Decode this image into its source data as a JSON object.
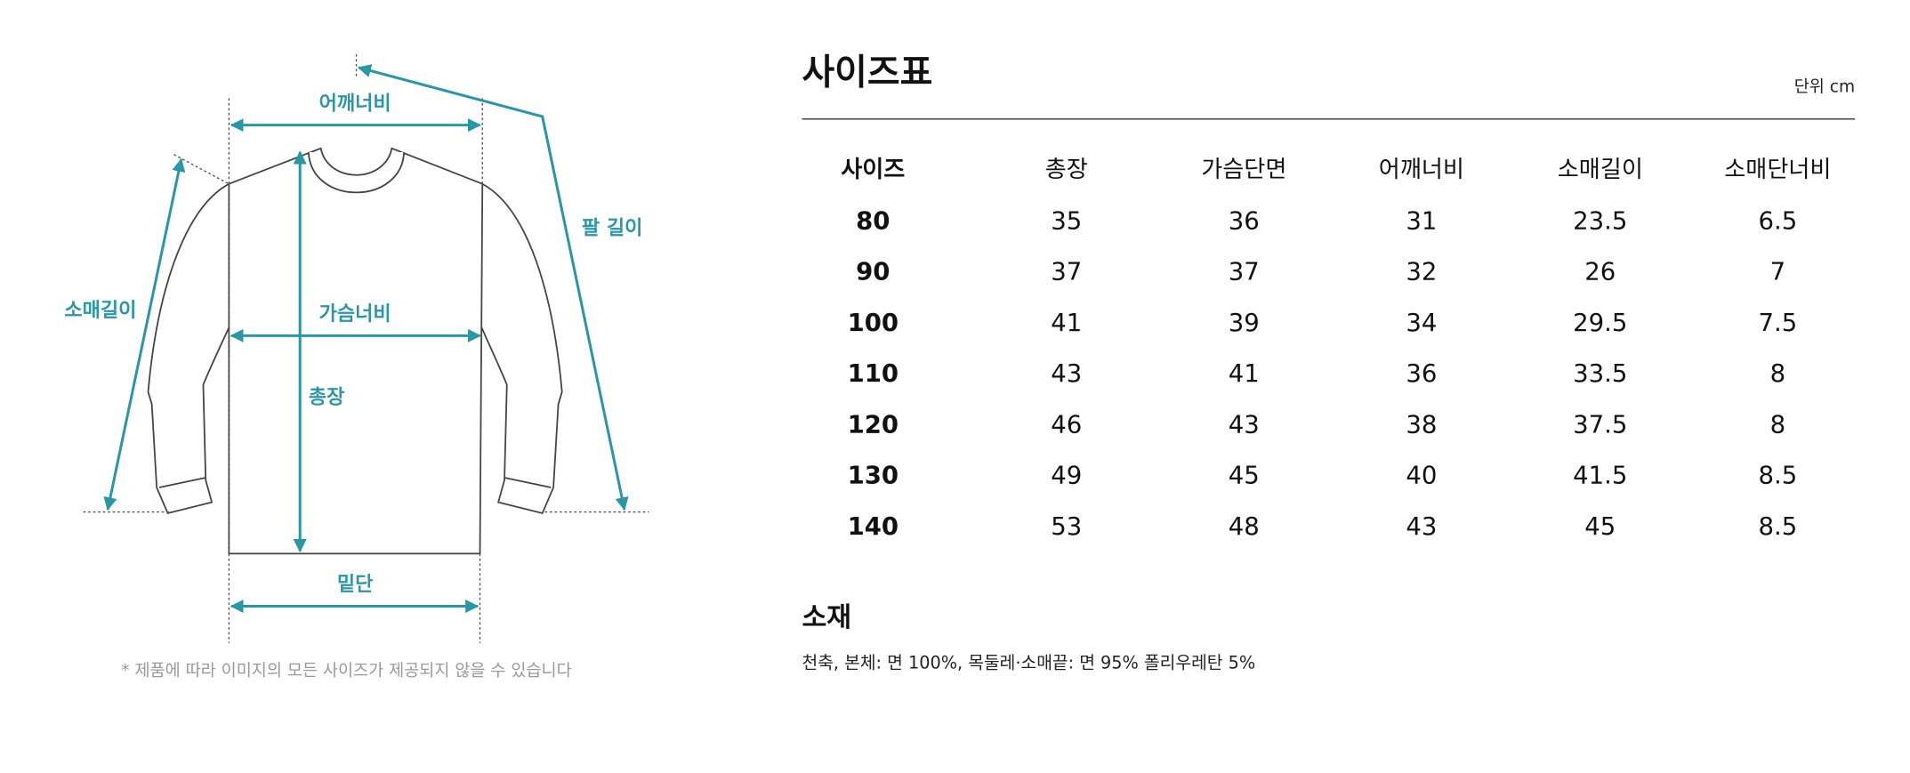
{
  "diagram": {
    "labels": {
      "shoulder": "어깨너비",
      "chest": "가슴너비",
      "length": "총장",
      "hem": "밑단",
      "sleeve": "소매길이",
      "arm": "팔 길이"
    },
    "note": "* 제품에 따라 이미지의 모든 사이즈가 제공되지 않을 수 있습니다"
  },
  "size_table": {
    "title": "사이즈표",
    "unit": "단위 cm",
    "columns": [
      "사이즈",
      "총장",
      "가슴단면",
      "어깨너비",
      "소매길이",
      "소매단너비"
    ],
    "rows": [
      [
        "80",
        "35",
        "36",
        "31",
        "23.5",
        "6.5"
      ],
      [
        "90",
        "37",
        "37",
        "32",
        "26",
        "7"
      ],
      [
        "100",
        "41",
        "39",
        "34",
        "29.5",
        "7.5"
      ],
      [
        "110",
        "43",
        "41",
        "36",
        "33.5",
        "8"
      ],
      [
        "120",
        "46",
        "43",
        "38",
        "37.5",
        "8"
      ],
      [
        "130",
        "49",
        "45",
        "40",
        "41.5",
        "8.5"
      ],
      [
        "140",
        "53",
        "48",
        "43",
        "45",
        "8.5"
      ]
    ]
  },
  "material": {
    "title": "소재",
    "text": "천축, 본체: 면 100%, 목둘레·소매끝: 면 95% 폴리우레탄 5%"
  }
}
